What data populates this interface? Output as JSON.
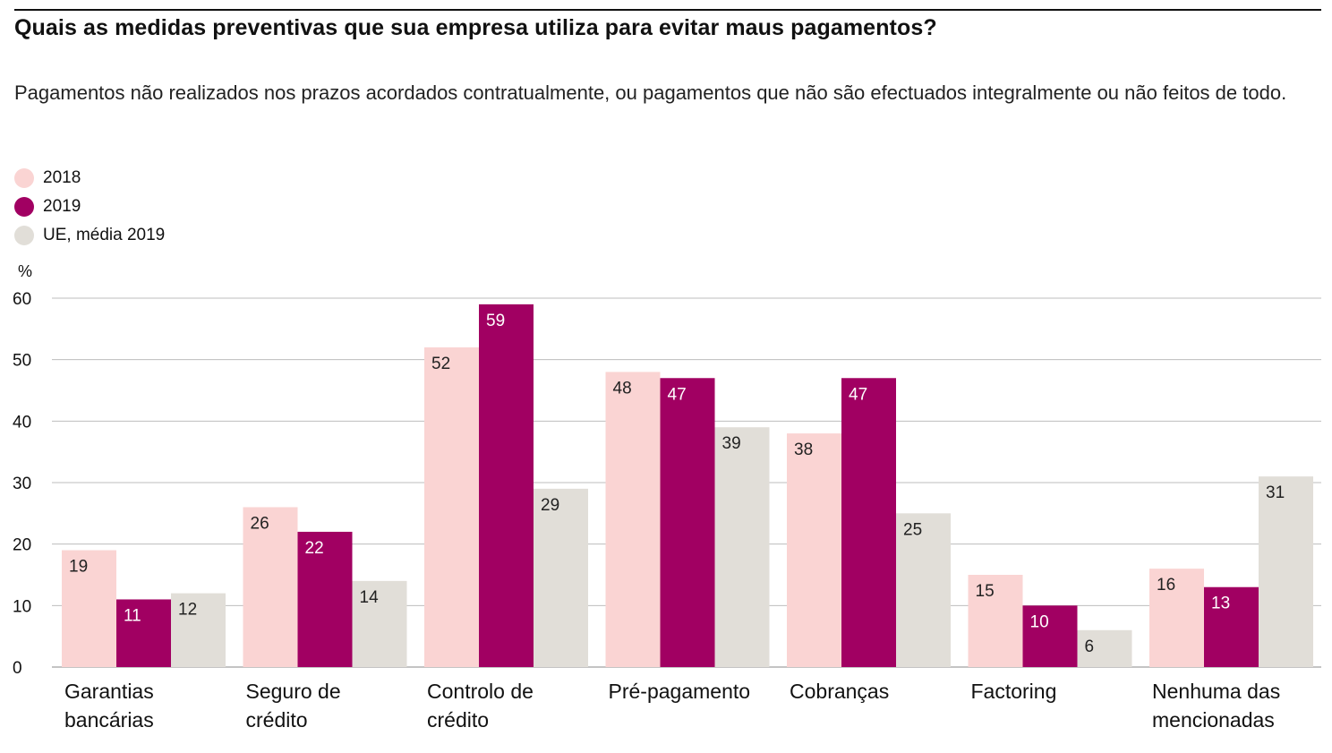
{
  "title": "Quais as medidas preventivas que sua empresa utiliza para evitar maus pagamentos?",
  "subtitle": "Pagamentos não realizados nos prazos acordados contratualmente, ou pagamentos que não são efectuados integralmente ou não feitos de todo.",
  "unit_label": "%",
  "legend": [
    {
      "label": "2018",
      "color": "#fad4d3"
    },
    {
      "label": "2019",
      "color": "#a10062"
    },
    {
      "label": "UE, média 2019",
      "color": "#e1ded8"
    }
  ],
  "chart_data": {
    "type": "bar",
    "categories": [
      [
        "Garantias",
        "bancárias"
      ],
      [
        "Seguro de",
        "crédito"
      ],
      [
        "Controlo de",
        "crédito"
      ],
      [
        "Pré-pagamento"
      ],
      [
        "Cobranças"
      ],
      [
        "Factoring"
      ],
      [
        "Nenhuma das",
        "mencionadas"
      ]
    ],
    "series": [
      {
        "name": "2018",
        "color": "#fad4d3",
        "label_color": "#222222",
        "values": [
          19,
          26,
          52,
          48,
          38,
          15,
          16
        ]
      },
      {
        "name": "2019",
        "color": "#a10062",
        "label_color": "#ffffff",
        "values": [
          11,
          22,
          59,
          47,
          47,
          10,
          13
        ]
      },
      {
        "name": "UE, média 2019",
        "color": "#e1ded8",
        "label_color": "#222222",
        "values": [
          12,
          14,
          29,
          39,
          25,
          6,
          31
        ]
      }
    ],
    "ylim": [
      0,
      60
    ],
    "yticks": [
      0,
      10,
      20,
      30,
      40,
      50,
      60
    ],
    "ylabel": "%",
    "grid": true,
    "legend_position": "top-left"
  }
}
